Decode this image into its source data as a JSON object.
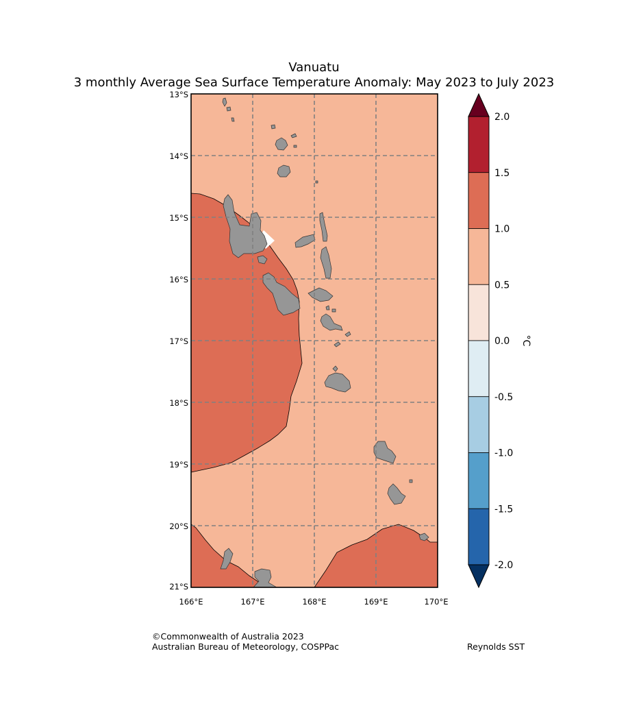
{
  "title": "Vanuatu",
  "subtitle": "3 monthly Average Sea Surface Temperature Anomaly: May 2023 to July 2023",
  "map": {
    "lon_range": [
      166,
      170
    ],
    "lat_range": [
      -21,
      -13
    ],
    "lon_ticks": [
      "166°E",
      "167°E",
      "168°E",
      "169°E",
      "170°E"
    ],
    "lat_ticks": [
      "13°S",
      "14°S",
      "15°S",
      "16°S",
      "17°S",
      "18°S",
      "19°S",
      "20°S",
      "21°S"
    ],
    "gridlines": true,
    "ocean_anomaly_class": "0.5 to 1.0",
    "warm_region_class": "1.0 to 1.5",
    "land_color": "#969696"
  },
  "colorbar": {
    "unit": "°C",
    "tick_labels": [
      "2.0",
      "1.5",
      "1.0",
      "0.5",
      "0.0",
      "-0.5",
      "-1.0",
      "-1.5",
      "-2.0"
    ],
    "colors": [
      "#b2202f",
      "#dd6d55",
      "#f6b798",
      "#f8e4da",
      "#dfedf3",
      "#a7cde3",
      "#559fcb",
      "#2565ab"
    ],
    "over_color": "#67001f",
    "under_color": "#053061"
  },
  "footer": {
    "copyright": "©Commonwealth of Australia 2023",
    "agency": "Australian Bureau of Meteorology, COSPPac",
    "dataset": "Reynolds SST"
  }
}
